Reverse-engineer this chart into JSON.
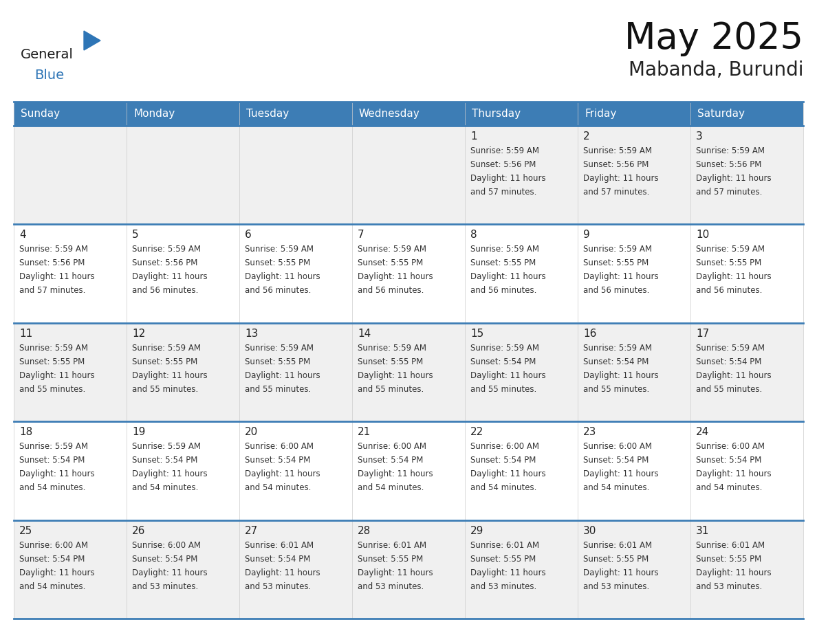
{
  "title": "May 2025",
  "subtitle": "Mabanda, Burundi",
  "days_of_week": [
    "Sunday",
    "Monday",
    "Tuesday",
    "Wednesday",
    "Thursday",
    "Friday",
    "Saturday"
  ],
  "header_bg_color": "#3d7db5",
  "header_text_color": "#FFFFFF",
  "cell_bg_white": "#FFFFFF",
  "cell_bg_gray": "#F0F0F0",
  "grid_line_color": "#3d7db5",
  "day_number_color": "#222222",
  "text_color": "#333333",
  "logo_general_color": "#1a1a1a",
  "logo_blue_color": "#2E75B6",
  "calendar": [
    [
      null,
      null,
      null,
      null,
      1,
      2,
      3
    ],
    [
      4,
      5,
      6,
      7,
      8,
      9,
      10
    ],
    [
      11,
      12,
      13,
      14,
      15,
      16,
      17
    ],
    [
      18,
      19,
      20,
      21,
      22,
      23,
      24
    ],
    [
      25,
      26,
      27,
      28,
      29,
      30,
      31
    ]
  ],
  "sun_data": {
    "1": {
      "rise": "5:59 AM",
      "set": "5:56 PM",
      "day_hours": 11,
      "day_mins": 57
    },
    "2": {
      "rise": "5:59 AM",
      "set": "5:56 PM",
      "day_hours": 11,
      "day_mins": 57
    },
    "3": {
      "rise": "5:59 AM",
      "set": "5:56 PM",
      "day_hours": 11,
      "day_mins": 57
    },
    "4": {
      "rise": "5:59 AM",
      "set": "5:56 PM",
      "day_hours": 11,
      "day_mins": 57
    },
    "5": {
      "rise": "5:59 AM",
      "set": "5:56 PM",
      "day_hours": 11,
      "day_mins": 56
    },
    "6": {
      "rise": "5:59 AM",
      "set": "5:55 PM",
      "day_hours": 11,
      "day_mins": 56
    },
    "7": {
      "rise": "5:59 AM",
      "set": "5:55 PM",
      "day_hours": 11,
      "day_mins": 56
    },
    "8": {
      "rise": "5:59 AM",
      "set": "5:55 PM",
      "day_hours": 11,
      "day_mins": 56
    },
    "9": {
      "rise": "5:59 AM",
      "set": "5:55 PM",
      "day_hours": 11,
      "day_mins": 56
    },
    "10": {
      "rise": "5:59 AM",
      "set": "5:55 PM",
      "day_hours": 11,
      "day_mins": 56
    },
    "11": {
      "rise": "5:59 AM",
      "set": "5:55 PM",
      "day_hours": 11,
      "day_mins": 55
    },
    "12": {
      "rise": "5:59 AM",
      "set": "5:55 PM",
      "day_hours": 11,
      "day_mins": 55
    },
    "13": {
      "rise": "5:59 AM",
      "set": "5:55 PM",
      "day_hours": 11,
      "day_mins": 55
    },
    "14": {
      "rise": "5:59 AM",
      "set": "5:55 PM",
      "day_hours": 11,
      "day_mins": 55
    },
    "15": {
      "rise": "5:59 AM",
      "set": "5:54 PM",
      "day_hours": 11,
      "day_mins": 55
    },
    "16": {
      "rise": "5:59 AM",
      "set": "5:54 PM",
      "day_hours": 11,
      "day_mins": 55
    },
    "17": {
      "rise": "5:59 AM",
      "set": "5:54 PM",
      "day_hours": 11,
      "day_mins": 55
    },
    "18": {
      "rise": "5:59 AM",
      "set": "5:54 PM",
      "day_hours": 11,
      "day_mins": 54
    },
    "19": {
      "rise": "5:59 AM",
      "set": "5:54 PM",
      "day_hours": 11,
      "day_mins": 54
    },
    "20": {
      "rise": "6:00 AM",
      "set": "5:54 PM",
      "day_hours": 11,
      "day_mins": 54
    },
    "21": {
      "rise": "6:00 AM",
      "set": "5:54 PM",
      "day_hours": 11,
      "day_mins": 54
    },
    "22": {
      "rise": "6:00 AM",
      "set": "5:54 PM",
      "day_hours": 11,
      "day_mins": 54
    },
    "23": {
      "rise": "6:00 AM",
      "set": "5:54 PM",
      "day_hours": 11,
      "day_mins": 54
    },
    "24": {
      "rise": "6:00 AM",
      "set": "5:54 PM",
      "day_hours": 11,
      "day_mins": 54
    },
    "25": {
      "rise": "6:00 AM",
      "set": "5:54 PM",
      "day_hours": 11,
      "day_mins": 54
    },
    "26": {
      "rise": "6:00 AM",
      "set": "5:54 PM",
      "day_hours": 11,
      "day_mins": 53
    },
    "27": {
      "rise": "6:01 AM",
      "set": "5:54 PM",
      "day_hours": 11,
      "day_mins": 53
    },
    "28": {
      "rise": "6:01 AM",
      "set": "5:55 PM",
      "day_hours": 11,
      "day_mins": 53
    },
    "29": {
      "rise": "6:01 AM",
      "set": "5:55 PM",
      "day_hours": 11,
      "day_mins": 53
    },
    "30": {
      "rise": "6:01 AM",
      "set": "5:55 PM",
      "day_hours": 11,
      "day_mins": 53
    },
    "31": {
      "rise": "6:01 AM",
      "set": "5:55 PM",
      "day_hours": 11,
      "day_mins": 53
    }
  }
}
